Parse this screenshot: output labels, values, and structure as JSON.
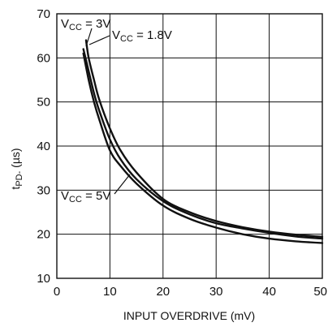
{
  "chart_data": {
    "type": "line",
    "title": "",
    "xlabel": "INPUT OVERDRIVE (mV)",
    "ylabel_main": "t",
    "ylabel_sub": "PD-",
    "ylabel_unit": " (µs)",
    "xlim": [
      0,
      50
    ],
    "ylim": [
      10,
      70
    ],
    "xticks": [
      0,
      10,
      20,
      30,
      40,
      50
    ],
    "yticks": [
      10,
      20,
      30,
      40,
      50,
      60,
      70
    ],
    "xtick_labels": [
      "0",
      "10",
      "20",
      "30",
      "40",
      "50"
    ],
    "ytick_labels": [
      "10",
      "20",
      "30",
      "40",
      "50",
      "60",
      "70"
    ],
    "grid": true,
    "series": [
      {
        "name": "VCC = 3V",
        "x": [
          5,
          6,
          7,
          8,
          10,
          12,
          15,
          20,
          25,
          30,
          35,
          40,
          45,
          50
        ],
        "y": [
          62,
          57,
          52,
          48,
          41.5,
          37,
          32.5,
          27.5,
          24.5,
          22.5,
          21.3,
          20.3,
          19.5,
          19
        ]
      },
      {
        "name": "VCC = 1.8V",
        "x": [
          5.5,
          6,
          7,
          8,
          10,
          12,
          15,
          20,
          25,
          30,
          35,
          40,
          45,
          50
        ],
        "y": [
          64,
          60,
          55,
          50.5,
          44,
          39,
          34,
          28,
          25,
          23,
          21.6,
          20.6,
          19.9,
          19.4
        ]
      },
      {
        "name": "VCC = 5V",
        "x": [
          5,
          6,
          7,
          8,
          10,
          12,
          15,
          20,
          25,
          30,
          35,
          40,
          45,
          50
        ],
        "y": [
          61,
          55,
          50,
          46,
          39,
          35.5,
          31.5,
          26.5,
          23.5,
          21.5,
          20,
          19,
          18.4,
          18
        ]
      }
    ],
    "annotations": [
      {
        "main": "V",
        "sub": "CC",
        "rest": " = 3V"
      },
      {
        "main": "V",
        "sub": "CC",
        "rest": " = 1.8V"
      },
      {
        "main": "V",
        "sub": "CC",
        "rest": " = 5V"
      }
    ]
  }
}
